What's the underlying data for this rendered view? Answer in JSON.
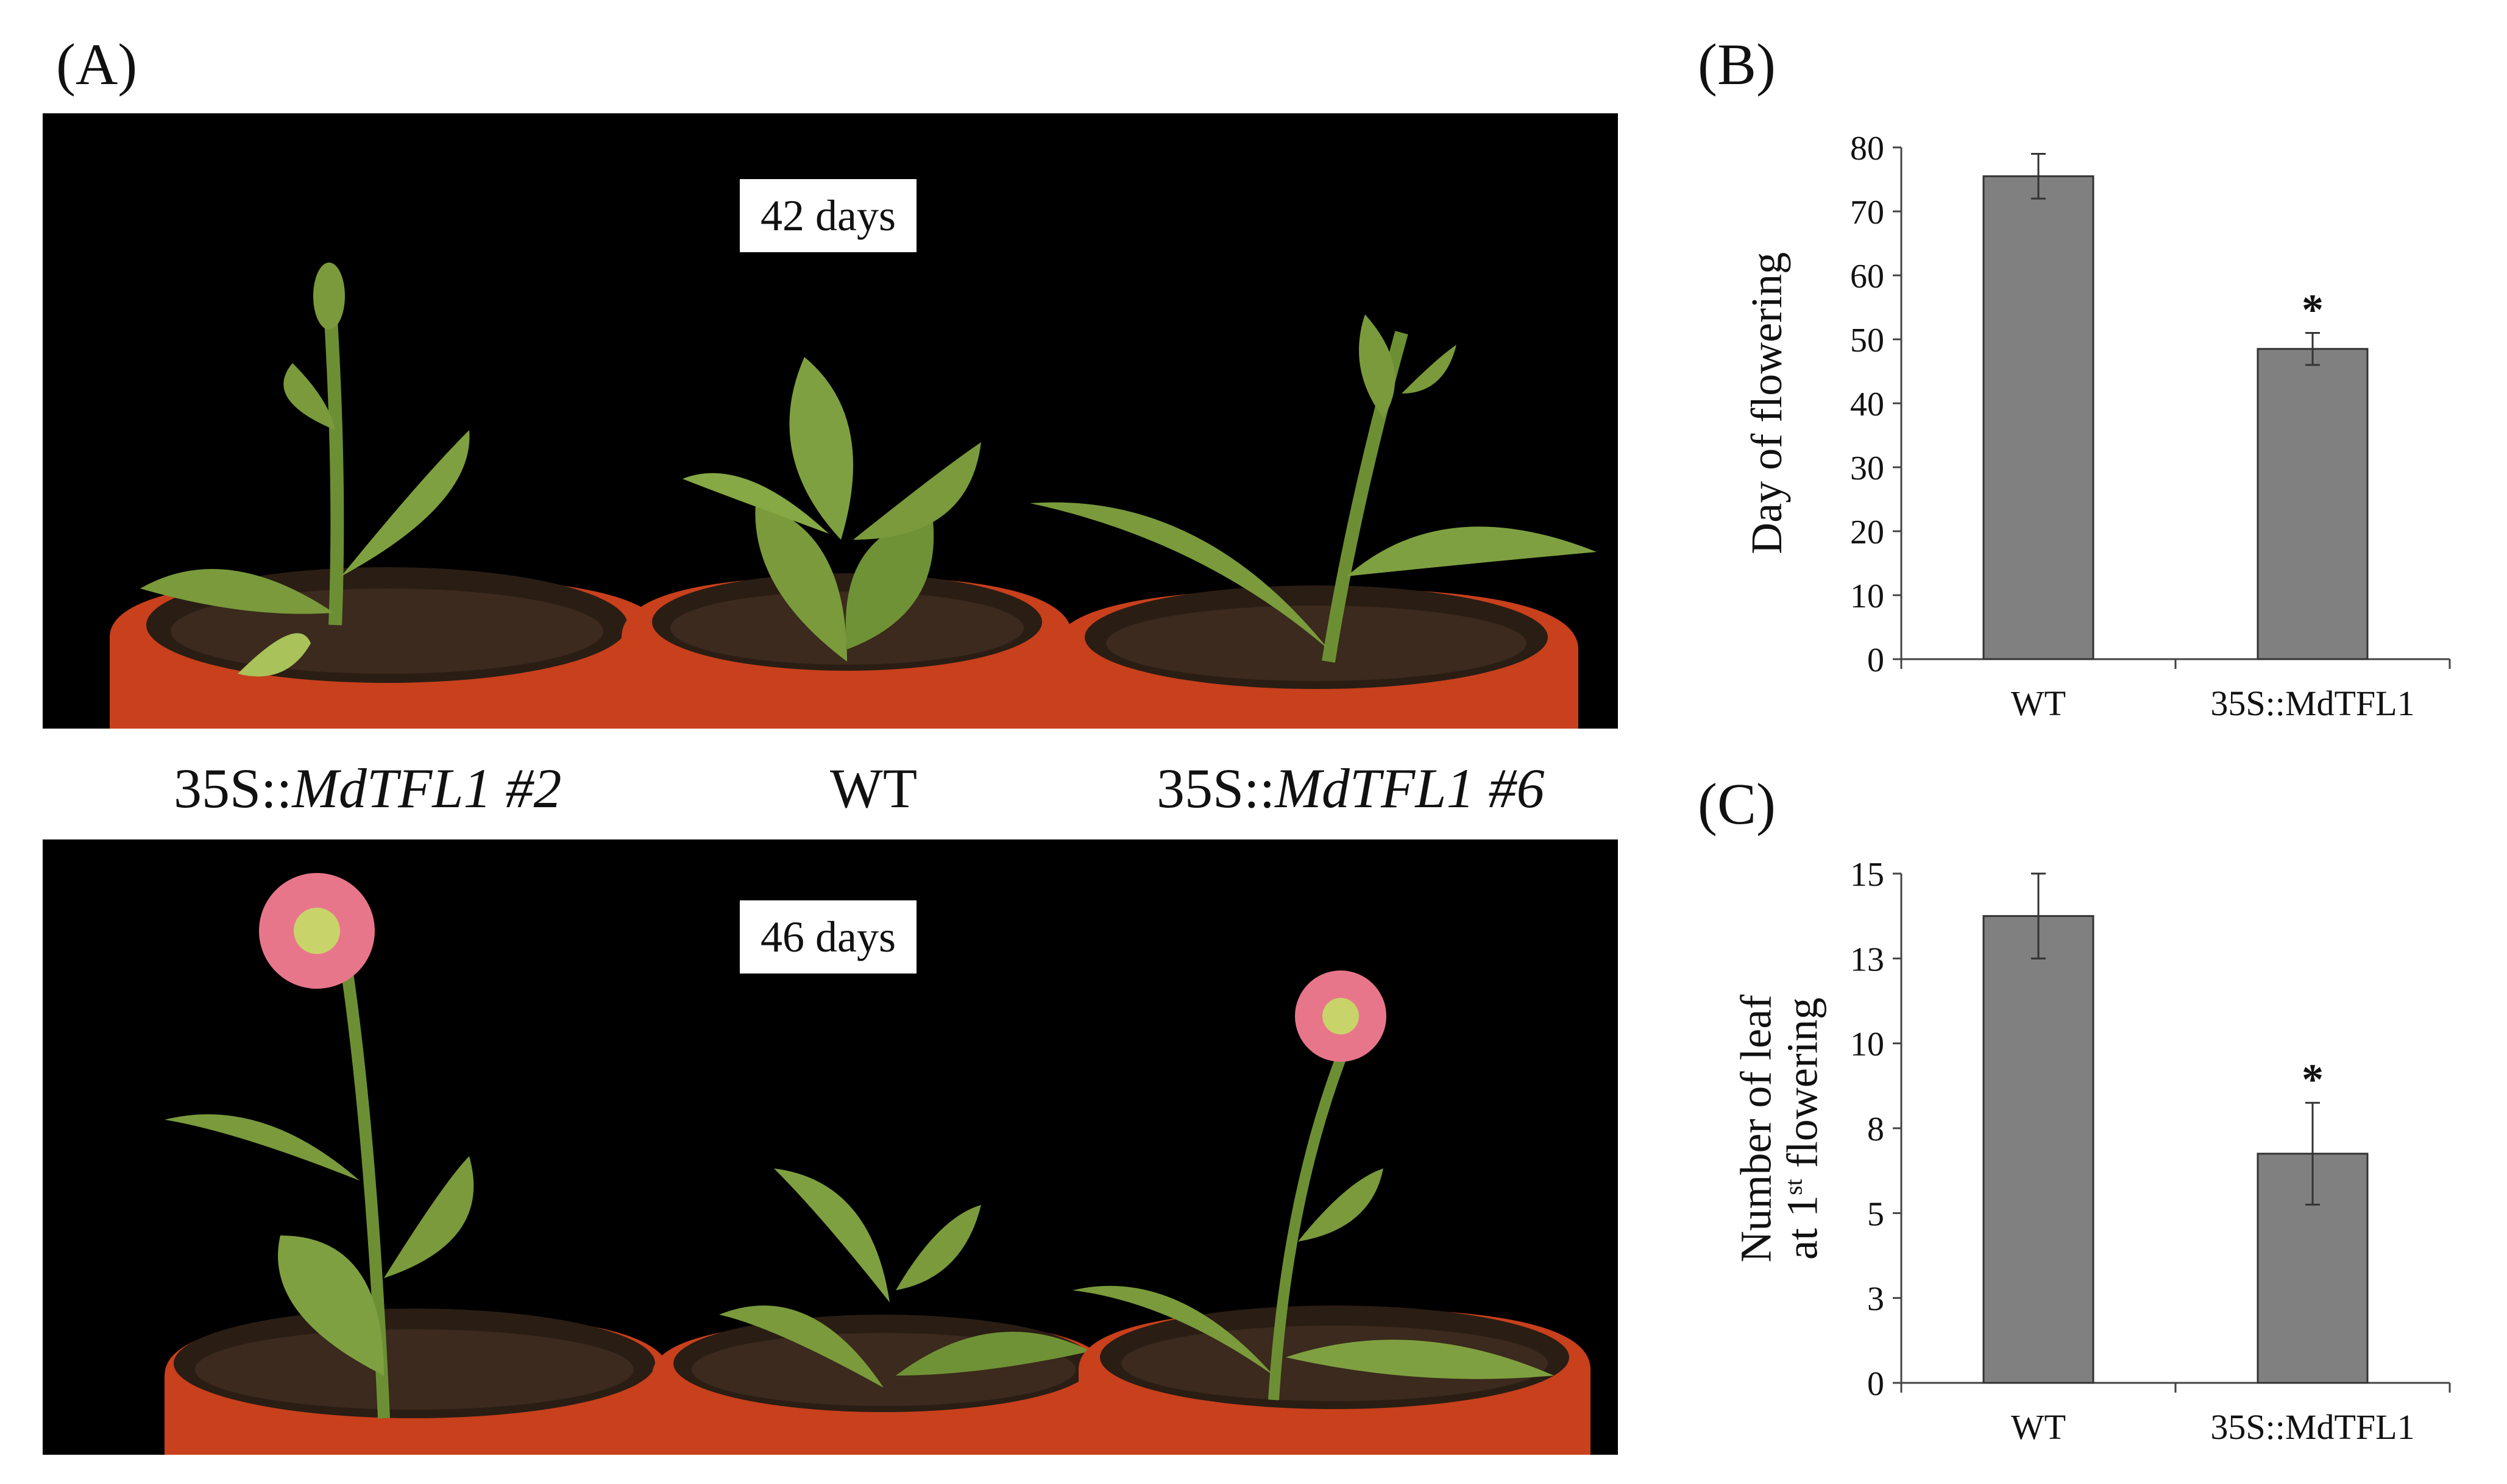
{
  "figure": {
    "panel_a": {
      "letter": "(A)",
      "top_day_label": "42 days",
      "bottom_day_label": "46 days",
      "genotype_labels": [
        {
          "prefix": "35S::",
          "italic": "MdTFL1 #2"
        },
        {
          "prefix": "WT",
          "italic": ""
        },
        {
          "prefix": "35S::",
          "italic": "MdTFL1 #6"
        }
      ]
    },
    "panel_b": {
      "letter": "(B)"
    },
    "panel_c": {
      "letter": "(C)"
    }
  },
  "colors": {
    "bar": "#808080",
    "photo_background": "#000000",
    "leaf": "#7a9a3c",
    "pot": "#c8401c",
    "flower": "#e8768a"
  },
  "chart_data": [
    {
      "type": "bar",
      "panel": "(B)",
      "categories": [
        "WT",
        "35S::MdTFL1"
      ],
      "values": [
        75.5,
        48.5
      ],
      "errors": [
        3.5,
        2.5
      ],
      "significance": [
        "",
        "*"
      ],
      "ylabel": "Day of flowering",
      "ylim": [
        0,
        80
      ],
      "yticks": [
        0,
        10,
        20,
        30,
        40,
        50,
        60,
        70,
        80
      ],
      "ytick_labels": [
        "0",
        "10",
        "20",
        "30",
        "40",
        "50",
        "60",
        "70",
        "80"
      ],
      "grid": false
    },
    {
      "type": "bar",
      "panel": "(C)",
      "categories": [
        "WT",
        "35S::MdTFL1"
      ],
      "values": [
        13.75,
        6.75
      ],
      "errors": [
        1.25,
        1.5
      ],
      "significance": [
        "",
        "*"
      ],
      "ylabel_line1": "Number of leaf",
      "ylabel_line2_pre": "at 1",
      "ylabel_line2_sup": "st",
      "ylabel_line2_post": " flowering",
      "ylim": [
        0,
        15
      ],
      "yticks": [
        0,
        2.5,
        5,
        7.5,
        10,
        12.5,
        15
      ],
      "ytick_labels": [
        "0",
        "3",
        "5",
        "8",
        "10",
        "13",
        "15"
      ],
      "grid": false
    }
  ]
}
